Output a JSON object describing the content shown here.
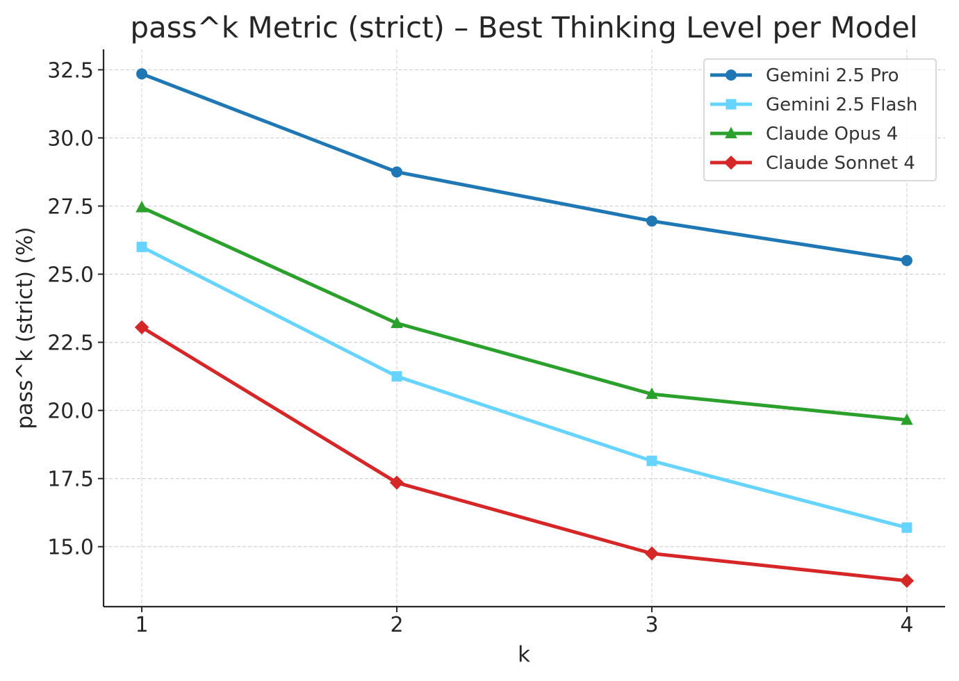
{
  "chart_data": {
    "type": "line",
    "title": "pass^k Metric (strict) – Best Thinking Level per Model",
    "xlabel": "k",
    "ylabel": "pass^k (strict) (%)",
    "x": [
      1,
      2,
      3,
      4
    ],
    "x_tick_labels": [
      "1",
      "2",
      "3",
      "4"
    ],
    "y_ticks": [
      15.0,
      17.5,
      20.0,
      22.5,
      25.0,
      27.5,
      30.0,
      32.5
    ],
    "y_tick_labels": [
      "15.0",
      "17.5",
      "20.0",
      "22.5",
      "25.0",
      "27.5",
      "30.0",
      "32.5"
    ],
    "xlim": [
      0.85,
      4.15
    ],
    "ylim": [
      12.8,
      33.25
    ],
    "grid": true,
    "legend_position": "top-right",
    "series": [
      {
        "name": "Gemini 2.5 Pro",
        "values": [
          32.35,
          28.75,
          26.95,
          25.5
        ],
        "color": "#1f77b4",
        "marker": "circle"
      },
      {
        "name": "Gemini 2.5 Flash",
        "values": [
          26.0,
          21.25,
          18.15,
          15.7
        ],
        "color": "#66d4ff",
        "marker": "square"
      },
      {
        "name": "Claude Opus 4",
        "values": [
          27.45,
          23.2,
          20.6,
          19.65
        ],
        "color": "#2ca02c",
        "marker": "triangle"
      },
      {
        "name": "Claude Sonnet 4",
        "values": [
          23.05,
          17.35,
          14.75,
          13.75
        ],
        "color": "#d62728",
        "marker": "diamond"
      }
    ]
  }
}
